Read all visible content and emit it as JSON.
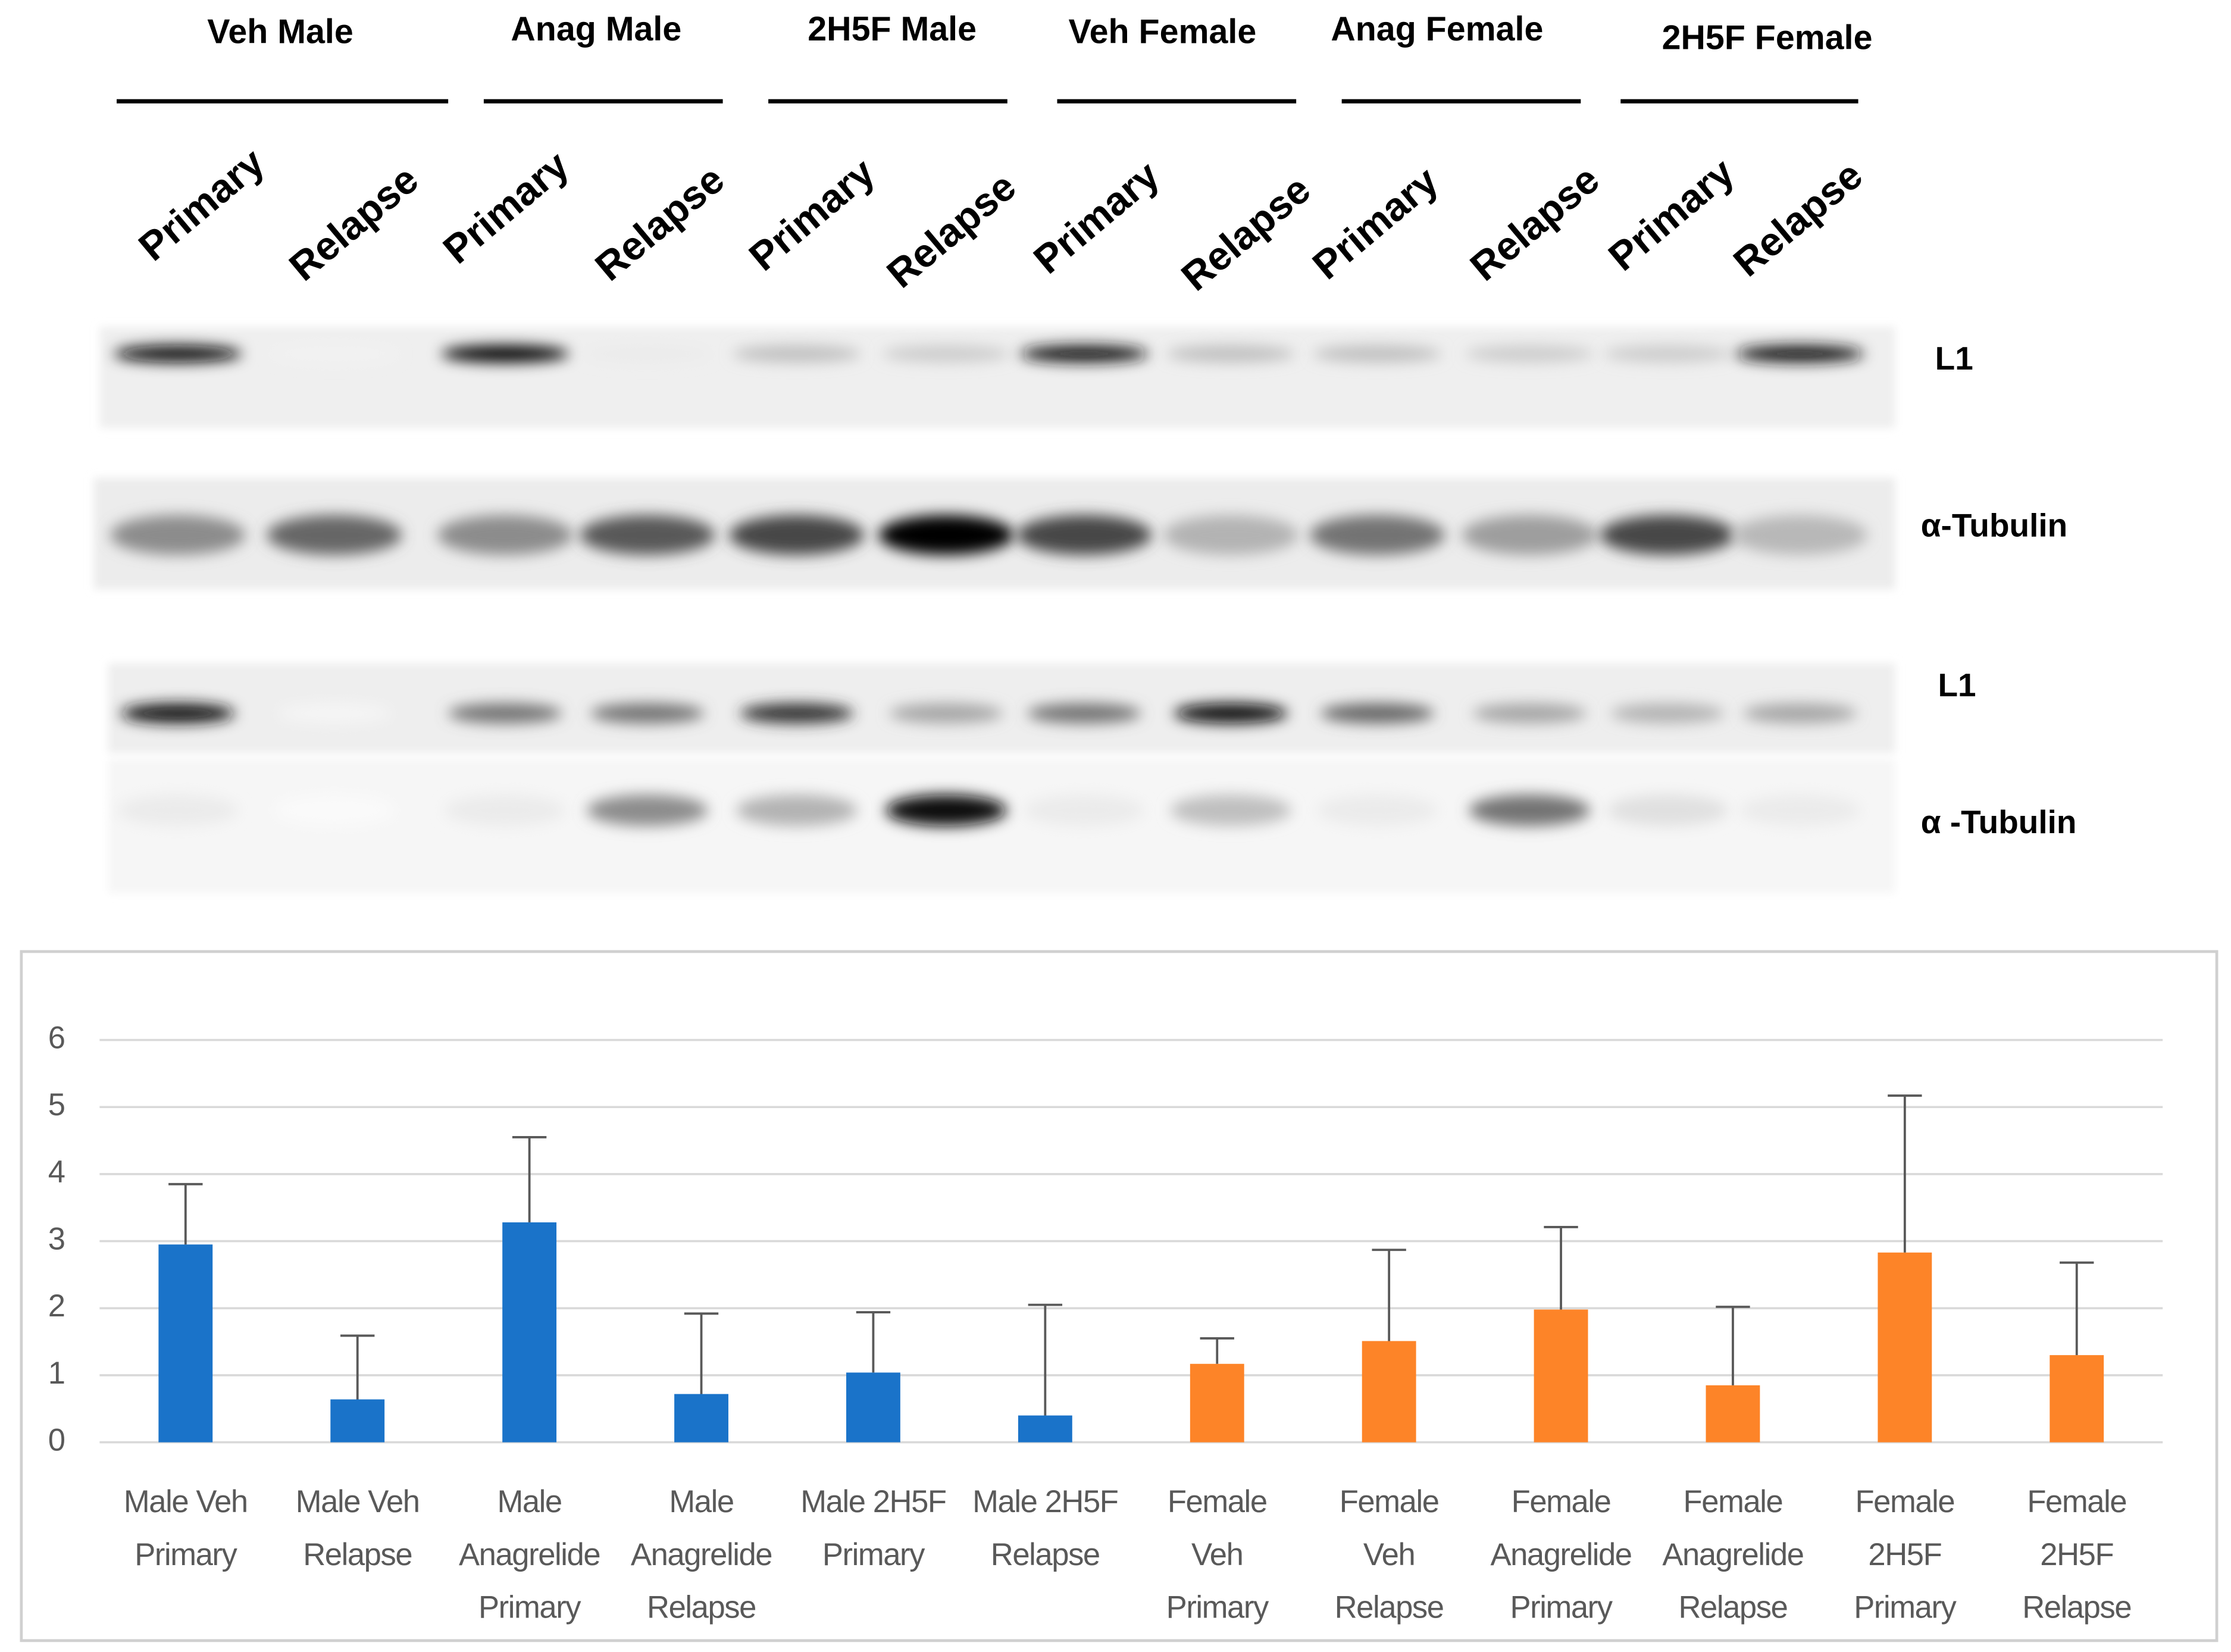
{
  "blot": {
    "groups": [
      "Veh Male",
      "Anag Male",
      "2H5F Male",
      "Veh Female",
      "Anag Female",
      "2H5F Female"
    ],
    "lanes": [
      "Primary",
      "Relapse",
      "Primary",
      "Relapse",
      "Primary",
      "Relapse",
      "Primary",
      "Relapse",
      "Primary",
      "Relapse",
      "Primary",
      "Relapse"
    ],
    "rows": [
      "L1",
      "α-Tubulin",
      "L1",
      "α -Tubulin"
    ]
  },
  "chart_data": {
    "type": "bar",
    "categories": [
      "Male Veh\nPrimary",
      "Male Veh\nRelapse",
      "Male\nAnagrelide\nPrimary",
      "Male\nAnagrelide\nRelapse",
      "Male 2H5F\nPrimary",
      "Male 2H5F\nRelapse",
      "Female\nVeh\nPrimary",
      "Female\nVeh\nRelapse",
      "Female\nAnagrelide\nPrimary",
      "Female\nAnagrelide\nRelapse",
      "Female\n2H5F\nPrimary",
      "Female\n2H5F\nRelapse"
    ],
    "values": [
      2.95,
      0.64,
      3.28,
      0.72,
      1.04,
      0.4,
      1.17,
      1.51,
      1.98,
      0.85,
      2.83,
      1.3
    ],
    "errors": [
      0.9,
      0.95,
      1.27,
      1.2,
      0.9,
      1.65,
      0.38,
      1.36,
      1.23,
      1.17,
      2.34,
      1.38
    ],
    "colors": [
      "#1a73c9",
      "#1a73c9",
      "#1a73c9",
      "#1a73c9",
      "#1a73c9",
      "#1a73c9",
      "#fd8428",
      "#fd8428",
      "#fd8428",
      "#fd8428",
      "#fd8428",
      "#fd8428"
    ],
    "ylim": [
      0,
      6
    ],
    "yticks": [
      0,
      1,
      2,
      3,
      4,
      5,
      6
    ],
    "grid": true
  }
}
